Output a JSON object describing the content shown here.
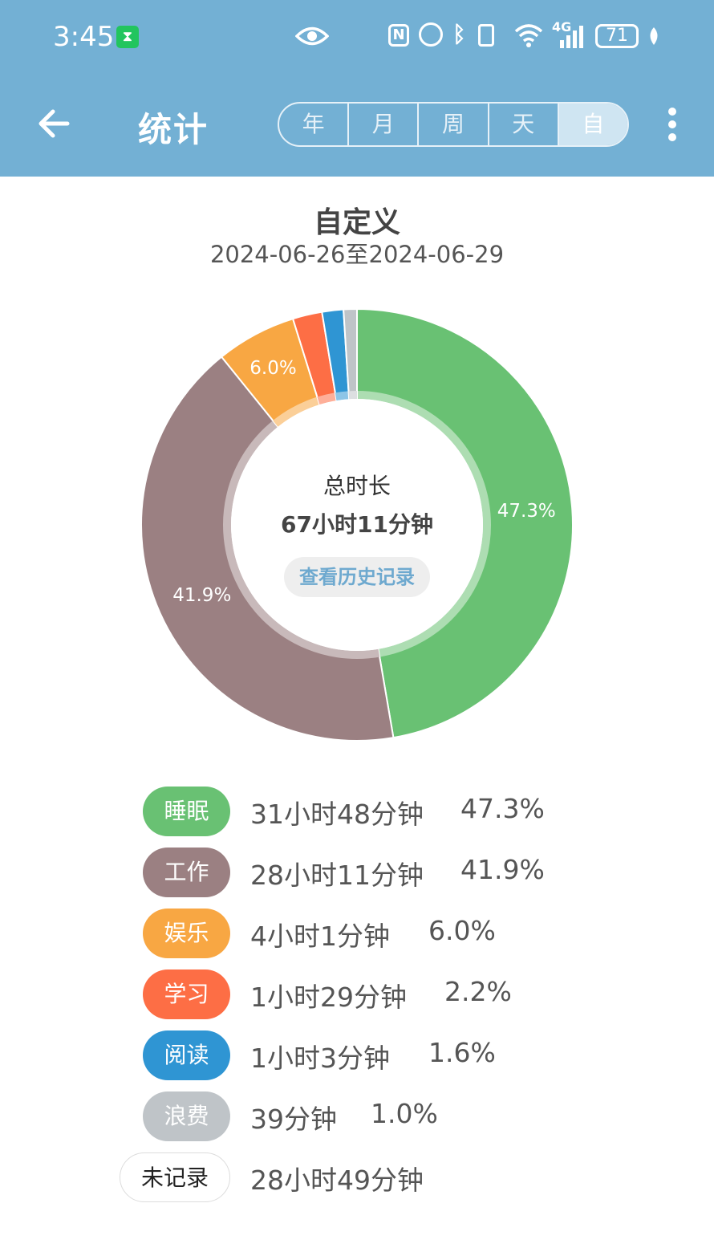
{
  "status_bar": {
    "time": "3:45",
    "battery": "71",
    "network": "4G",
    "icons": [
      "hourglass-icon",
      "eye-icon",
      "nfc-icon",
      "alarm-icon",
      "bluetooth-icon",
      "vibrate-icon",
      "wifi-icon",
      "signal-icon",
      "battery-icon",
      "leaf-icon"
    ]
  },
  "app_bar": {
    "title": "统计",
    "segments": [
      "年",
      "月",
      "周",
      "天",
      "自"
    ],
    "active_segment": "自"
  },
  "header": {
    "title": "自定义",
    "range": "2024-06-26至2024-06-29"
  },
  "center": {
    "label": "总时长",
    "value": "67小时11分钟",
    "history_button": "查看历史记录"
  },
  "chart_data": {
    "type": "pie",
    "slices": [
      {
        "name": "睡眠",
        "value": 47.3,
        "label": "47.3%",
        "color": "#69c173"
      },
      {
        "name": "工作",
        "value": 41.9,
        "label": "41.9%",
        "color": "#9b8082"
      },
      {
        "name": "娱乐",
        "value": 6.0,
        "label": "6.0%",
        "color": "#f8a743"
      },
      {
        "name": "学习",
        "value": 2.2,
        "label": "",
        "color": "#fd6e45"
      },
      {
        "name": "阅读",
        "value": 1.6,
        "label": "",
        "color": "#2f95d3"
      },
      {
        "name": "浪费",
        "value": 1.0,
        "label": "",
        "color": "#bfc4c8"
      }
    ]
  },
  "legend": [
    {
      "name": "睡眠",
      "duration": "31小时48分钟",
      "percent": "47.3%",
      "color": "#69c173"
    },
    {
      "name": "工作",
      "duration": "28小时11分钟",
      "percent": "41.9%",
      "color": "#9b8082"
    },
    {
      "name": "娱乐",
      "duration": "4小时1分钟",
      "percent": "6.0%",
      "color": "#f8a743"
    },
    {
      "name": "学习",
      "duration": "1小时29分钟",
      "percent": "2.2%",
      "color": "#fd6e45"
    },
    {
      "name": "阅读",
      "duration": "1小时3分钟",
      "percent": "1.6%",
      "color": "#2f95d3"
    },
    {
      "name": "浪费",
      "duration": "39分钟",
      "percent": "1.0%",
      "color": "#bfc4c8"
    },
    {
      "name": "未记录",
      "duration": "28小时49分钟",
      "percent": "",
      "color": "#ffffff"
    }
  ]
}
